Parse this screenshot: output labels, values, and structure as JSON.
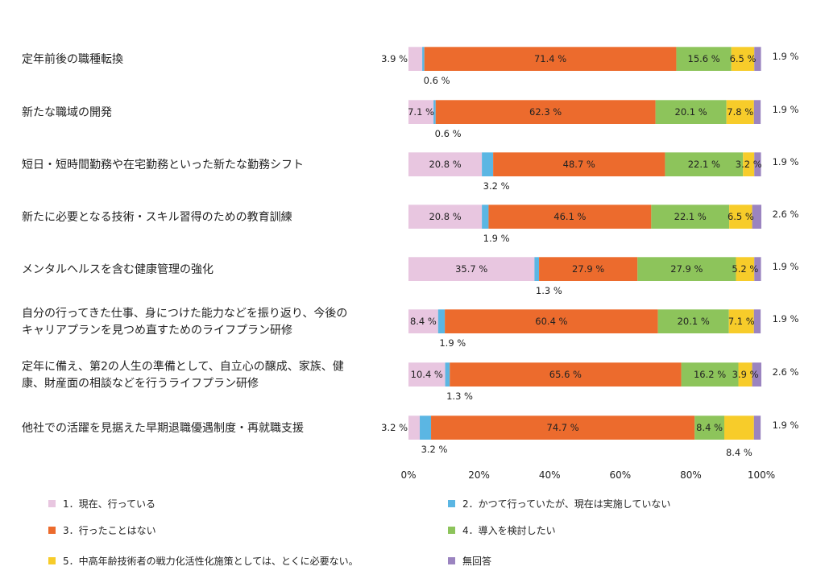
{
  "chart_data": {
    "type": "bar",
    "orientation": "horizontal",
    "stacked": true,
    "percent": true,
    "xlim": [
      0,
      100
    ],
    "x_ticks": [
      "0%",
      "20%",
      "40%",
      "60%",
      "80%",
      "100%"
    ],
    "categories": [
      [
        "定年前後の職種転換"
      ],
      [
        "新たな職域の開発"
      ],
      [
        "短日・短時間勤務や在宅勤務といった新たな勤務シフト"
      ],
      [
        "新たに必要となる技術・スキル習得のための教育訓練"
      ],
      [
        "メンタルヘルスを含む健康管理の強化"
      ],
      [
        "自分の行ってきた仕事、身につけた能力などを振り返り、今後の",
        "キャリアプランを見つめ直すためのライフプラン研修"
      ],
      [
        "定年に備え、第2の人生の準備として、自立心の醸成、家族、健",
        "康、財産面の相談などを行うライフプラン研修"
      ],
      [
        "他社での活躍を見据えた早期退職優遇制度・再就職支援"
      ]
    ],
    "series": [
      {
        "name": "1．現在、行っている",
        "color": "#e8c6e0",
        "values": [
          3.9,
          7.1,
          20.8,
          20.8,
          35.7,
          8.4,
          10.4,
          3.2
        ]
      },
      {
        "name": "2．かつて行っていたが、現在は実施していない",
        "color": "#5bb6e3",
        "values": [
          0.6,
          0.6,
          3.2,
          1.9,
          1.3,
          1.9,
          1.3,
          3.2
        ]
      },
      {
        "name": "3．行ったことはない",
        "color": "#ec6b2d",
        "values": [
          71.4,
          62.3,
          48.7,
          46.1,
          27.9,
          60.4,
          65.6,
          74.7
        ]
      },
      {
        "name": "4．導入を検討したい",
        "color": "#8dc45b",
        "values": [
          15.6,
          20.1,
          22.1,
          22.1,
          27.9,
          20.1,
          16.2,
          8.4
        ]
      },
      {
        "name": "5．中高年齢技術者の戦力化活性化施策としては、とくに必要ない。",
        "color": "#f7cc2a",
        "values": [
          6.5,
          7.8,
          3.2,
          6.5,
          5.2,
          7.1,
          3.9,
          8.4
        ]
      },
      {
        "name": "無回答",
        "color": "#9b84c0",
        "values": [
          1.9,
          1.9,
          1.9,
          2.6,
          1.9,
          1.9,
          2.6,
          1.9
        ]
      }
    ],
    "legend_position": "bottom"
  }
}
